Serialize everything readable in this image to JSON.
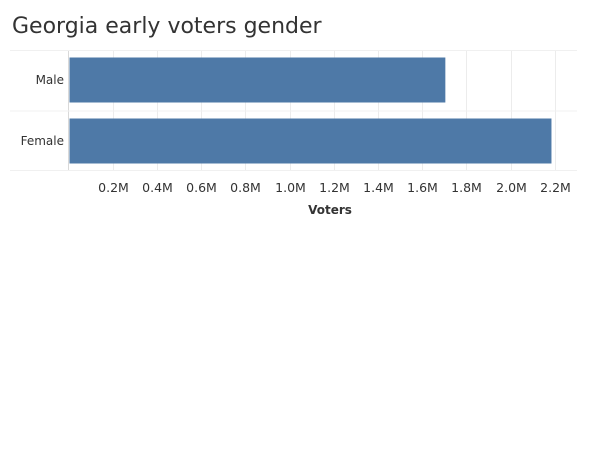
{
  "chart_data": {
    "type": "bar",
    "orientation": "horizontal",
    "title": "Georgia early voters gender",
    "xlabel": "Voters",
    "ylabel": "",
    "categories": [
      "Male",
      "Female"
    ],
    "values": [
      1700000,
      2180000
    ],
    "xlim": [
      0,
      2300000
    ],
    "xticks": [
      200000,
      400000,
      600000,
      800000,
      1000000,
      1200000,
      1400000,
      1600000,
      1800000,
      2000000,
      2200000
    ],
    "xtick_labels": [
      "0.2M",
      "0.4M",
      "0.6M",
      "0.8M",
      "1.0M",
      "1.2M",
      "1.4M",
      "1.6M",
      "1.8M",
      "2.0M",
      "2.2M"
    ],
    "bar_color": "#4e79a7",
    "grid": true,
    "legend": "none"
  }
}
